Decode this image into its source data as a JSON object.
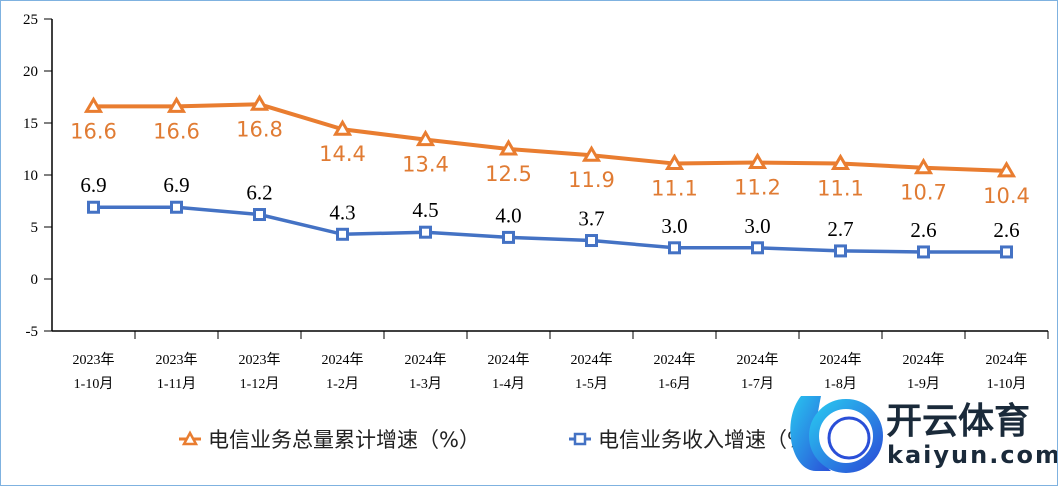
{
  "chart_data": {
    "type": "line",
    "categories": [
      [
        "2023年",
        "1-10月"
      ],
      [
        "2023年",
        "1-11月"
      ],
      [
        "2023年",
        "1-12月"
      ],
      [
        "2024年",
        "1-2月"
      ],
      [
        "2024年",
        "1-3月"
      ],
      [
        "2024年",
        "1-4月"
      ],
      [
        "2024年",
        "1-5月"
      ],
      [
        "2024年",
        "1-6月"
      ],
      [
        "2024年",
        "1-7月"
      ],
      [
        "2024年",
        "1-8月"
      ],
      [
        "2024年",
        "1-9月"
      ],
      [
        "2024年",
        "1-10月"
      ]
    ],
    "series": [
      {
        "name": "电信业务总量累计增速（%）",
        "color": "#e97d30",
        "marker": "triangle",
        "values": [
          16.6,
          16.6,
          16.8,
          14.4,
          13.4,
          12.5,
          11.9,
          11.1,
          11.2,
          11.1,
          10.7,
          10.4
        ]
      },
      {
        "name": "电信业务收入增速（%）",
        "color": "#4472c4",
        "marker": "square",
        "values": [
          6.9,
          6.9,
          6.2,
          4.3,
          4.5,
          4.0,
          3.7,
          3.0,
          3.0,
          2.7,
          2.6,
          2.6
        ]
      }
    ],
    "yticks": [
      25,
      20,
      15,
      10,
      5,
      0,
      -5
    ],
    "ylim": [
      -5,
      25
    ],
    "grid": false,
    "legend_placement": "bottom"
  },
  "watermark": {
    "cn": "开云体育",
    "en": "kaiyun.com"
  }
}
